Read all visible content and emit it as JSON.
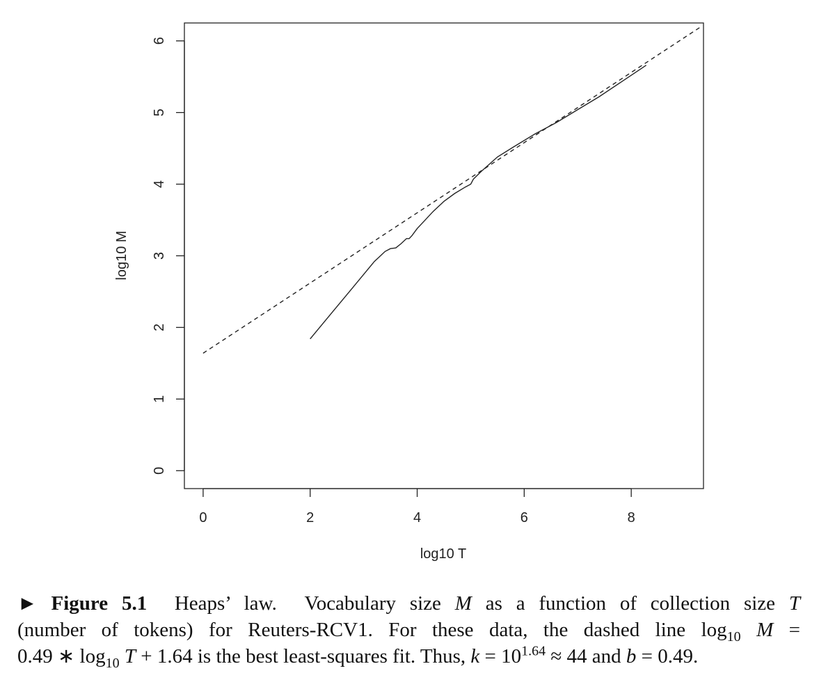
{
  "chart_data": {
    "type": "line",
    "xlabel": "log10 T",
    "ylabel": "log10 M",
    "xlim": [
      -0.35,
      9.35
    ],
    "ylim": [
      -0.25,
      6.25
    ],
    "xticks": [
      0,
      2,
      4,
      6,
      8
    ],
    "yticks": [
      0,
      1,
      2,
      3,
      4,
      5,
      6
    ],
    "grid": false,
    "legend": "none",
    "series": [
      {
        "style": "solid",
        "x": [
          2.0,
          2.4,
          2.8,
          3.2,
          3.4,
          3.5,
          3.6,
          3.7,
          3.8,
          3.85,
          3.9,
          4.0,
          4.1,
          4.3,
          4.5,
          4.7,
          4.9,
          5.0,
          5.05,
          5.2,
          5.5,
          5.8,
          6.2,
          6.6,
          7.0,
          7.4,
          7.8,
          8.2,
          8.28
        ],
        "y": [
          1.84,
          2.2,
          2.56,
          2.92,
          3.06,
          3.1,
          3.11,
          3.17,
          3.24,
          3.24,
          3.28,
          3.38,
          3.46,
          3.62,
          3.76,
          3.87,
          3.96,
          4.0,
          4.07,
          4.18,
          4.38,
          4.52,
          4.7,
          4.86,
          5.04,
          5.22,
          5.42,
          5.62,
          5.66
        ]
      },
      {
        "style": "dashed",
        "x": [
          0,
          9.3
        ],
        "y": [
          1.64,
          6.197
        ]
      }
    ]
  },
  "caption": {
    "marker": "►",
    "label": "Figure 5.1",
    "title": "Heaps’ law.",
    "line1": "Vocabulary size M as a function of collection size T",
    "line2": "(number of tokens) for Reuters-RCV1.  For these data, the dashed line log10 M =",
    "line3": "0.49 ∗ log10 T + 1.64 is the best least-squares fit. Thus, k = 10^1.64 ≈ 44 and b = 0.49."
  }
}
